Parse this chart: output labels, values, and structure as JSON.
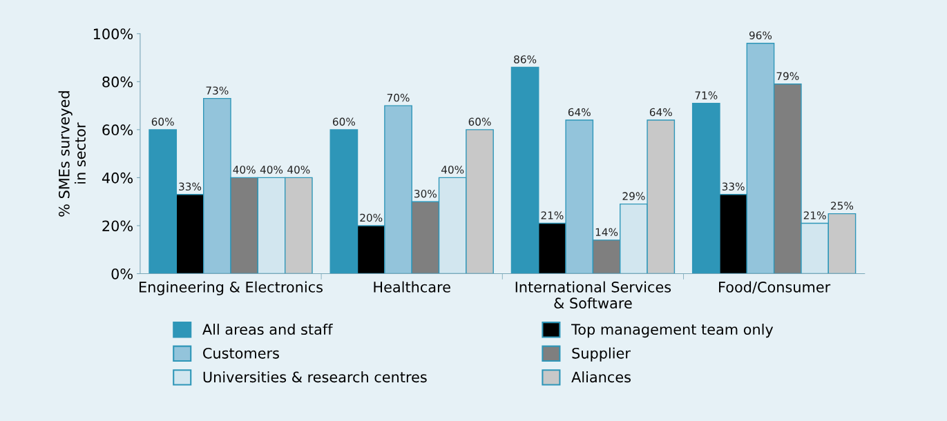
{
  "chart_data": {
    "type": "bar",
    "ylabel": "% SMEs surveyed\nin sector",
    "categories": [
      "Engineering & Electronics",
      "Healthcare",
      "International Services\n& Software",
      "Food/Consumer"
    ],
    "ylim": [
      0,
      100
    ],
    "yticks": [
      {
        "value": 0,
        "label": "0%"
      },
      {
        "value": 20,
        "label": "20%"
      },
      {
        "value": 40,
        "label": "40%"
      },
      {
        "value": 60,
        "label": "60%"
      },
      {
        "value": 80,
        "label": "80%"
      },
      {
        "value": 100,
        "label": "100%"
      }
    ],
    "grid": false,
    "legend": "bottom",
    "series": [
      {
        "name": "All areas and staff",
        "color": "#2e96b8",
        "values": [
          60,
          60,
          86,
          71
        ],
        "value_labels": [
          "60%",
          "60%",
          "86%",
          "71%"
        ]
      },
      {
        "name": "Top management team only",
        "color": "#000000",
        "values": [
          33,
          20,
          21,
          33
        ],
        "value_labels": [
          "33%",
          "20%",
          "21%",
          "33%"
        ]
      },
      {
        "name": "Customers",
        "color": "#93c4db",
        "values": [
          73,
          70,
          64,
          96
        ],
        "value_labels": [
          "73%",
          "70%",
          "64%",
          "96%"
        ]
      },
      {
        "name": "Supplier",
        "color": "#7f7f7f",
        "values": [
          40,
          30,
          14,
          79
        ],
        "value_labels": [
          "40%",
          "30%",
          "14%",
          "79%"
        ]
      },
      {
        "name": "Universities & research centres",
        "color": "#d2e6ef",
        "values": [
          40,
          40,
          29,
          21
        ],
        "value_labels": [
          "40%",
          "40%",
          "29%",
          "21%"
        ]
      },
      {
        "name": "Aliances",
        "color": "#c8c8c8",
        "values": [
          40,
          60,
          64,
          25
        ],
        "value_labels": [
          "40%",
          "60%",
          "64%",
          "25%"
        ]
      }
    ]
  }
}
